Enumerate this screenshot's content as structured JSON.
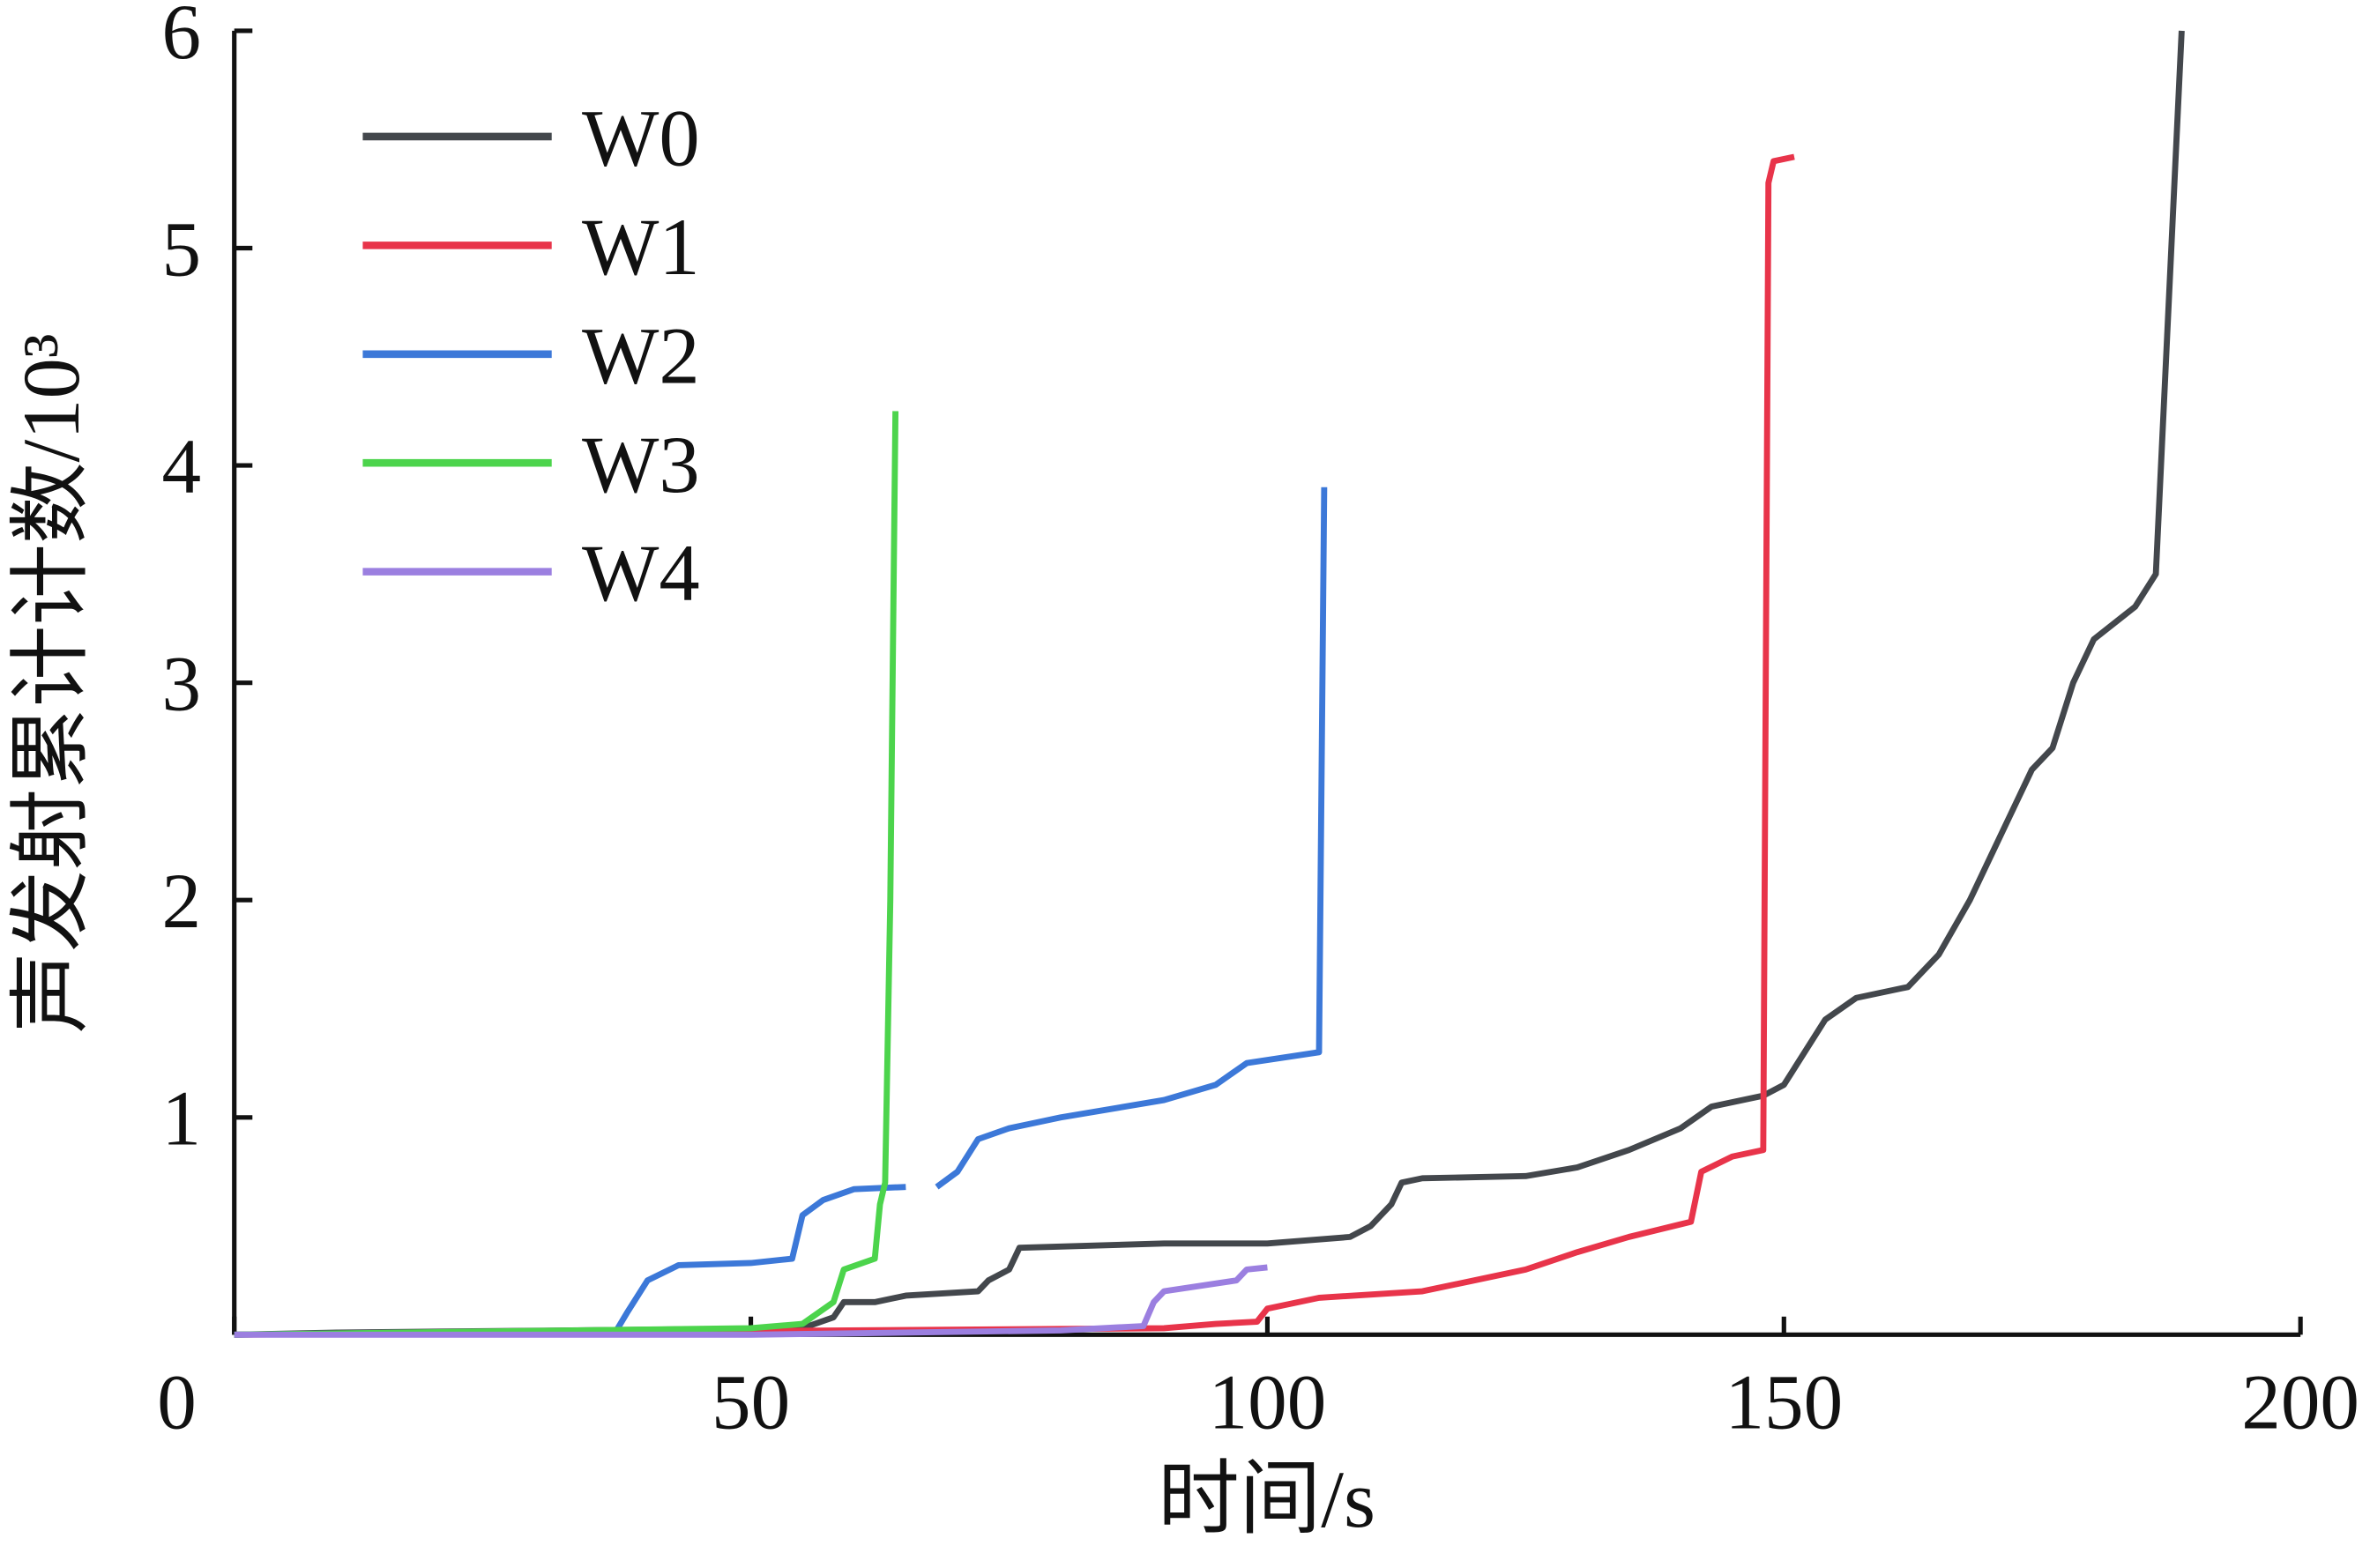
{
  "chart_data": {
    "type": "line",
    "xlabel": "时间/s",
    "ylabel": "声发射累计计数/10³",
    "xlim": [
      0,
      200
    ],
    "ylim": [
      0,
      6
    ],
    "xticks": [
      0,
      50,
      100,
      150,
      200
    ],
    "yticks": [
      1,
      2,
      3,
      4,
      5,
      6
    ],
    "legend": "upper left",
    "series": [
      {
        "name": "W0",
        "color": "#43474c",
        "x": [
          0,
          10,
          55,
          58,
          59,
          62,
          65,
          72,
          73,
          75,
          76,
          90,
          100,
          108,
          110,
          112,
          113,
          115,
          125,
          130,
          135,
          140,
          143,
          148,
          150,
          152,
          154,
          157,
          162,
          165,
          168,
          170,
          172,
          174,
          176,
          178,
          180,
          184,
          186,
          187,
          188,
          188.5
        ],
        "values": [
          0,
          0.01,
          0.03,
          0.08,
          0.15,
          0.15,
          0.18,
          0.2,
          0.25,
          0.3,
          0.4,
          0.42,
          0.42,
          0.45,
          0.5,
          0.6,
          0.7,
          0.72,
          0.73,
          0.77,
          0.85,
          0.95,
          1.05,
          1.1,
          1.15,
          1.3,
          1.45,
          1.55,
          1.6,
          1.75,
          2.0,
          2.2,
          2.4,
          2.6,
          2.7,
          3.0,
          3.2,
          3.35,
          3.5,
          4.5,
          5.5,
          6.0
        ]
      },
      {
        "name": "W1",
        "color": "#e8344a",
        "x": [
          0,
          90,
          95,
          99,
          100,
          105,
          115,
          120,
          125,
          130,
          135,
          141,
          142,
          145,
          148,
          148.5,
          149,
          151
        ],
        "values": [
          0,
          0.03,
          0.05,
          0.06,
          0.12,
          0.17,
          0.2,
          0.25,
          0.3,
          0.38,
          0.45,
          0.52,
          0.75,
          0.82,
          0.85,
          5.3,
          5.4,
          5.42
        ]
      },
      {
        "name": "W2",
        "color": "#3c78d8",
        "x": [
          0,
          37,
          38,
          40,
          43,
          50,
          54,
          55,
          57,
          60,
          65,
          66,
          68,
          70,
          72,
          75,
          80,
          90,
          95,
          98,
          105,
          105.5
        ],
        "values": [
          0,
          0.02,
          0.1,
          0.25,
          0.32,
          0.33,
          0.35,
          0.55,
          0.62,
          0.67,
          0.68,
          null,
          0.68,
          0.75,
          0.9,
          0.95,
          1.0,
          1.08,
          1.15,
          1.25,
          1.3,
          3.9
        ]
      },
      {
        "name": "W3",
        "color": "#4cd44c",
        "x": [
          0,
          50,
          55,
          58,
          59,
          62,
          62.5,
          63,
          63.5,
          64
        ],
        "values": [
          0,
          0.03,
          0.05,
          0.15,
          0.3,
          0.35,
          0.6,
          0.7,
          2.0,
          4.25
        ]
      },
      {
        "name": "W4",
        "color": "#9b7fe0",
        "x": [
          0,
          50,
          80,
          88,
          89,
          90,
          97,
          98,
          100
        ],
        "values": [
          0,
          0,
          0.02,
          0.04,
          0.15,
          0.2,
          0.25,
          0.3,
          0.31
        ]
      }
    ]
  }
}
